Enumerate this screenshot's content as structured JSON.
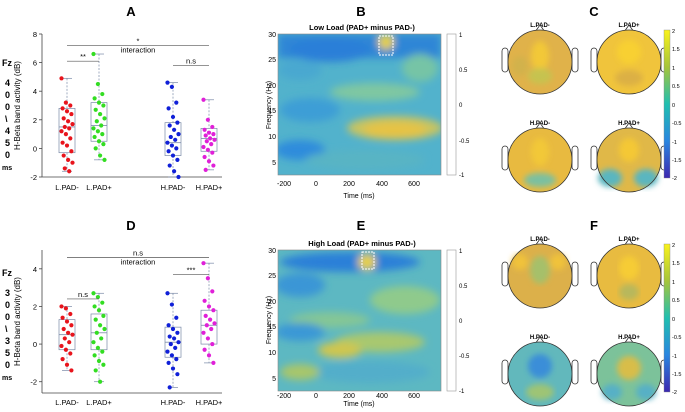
{
  "colors": {
    "lpad_minus": "#e8141c",
    "lpad_plus": "#33dd22",
    "hpad_minus": "#1020d8",
    "hpad_plus": "#e020d8",
    "box": "#7a8aa8",
    "bracket": "#555555"
  },
  "panel_labels": {
    "A": "A",
    "B": "B",
    "C": "C",
    "D": "D",
    "E": "E",
    "F": "F"
  },
  "side_labels": {
    "top": {
      "fz": "Fz",
      "chars": [
        "4",
        "0",
        "0",
        "\\",
        "4",
        "5",
        "0"
      ],
      "unit": "ms"
    },
    "bottom": {
      "fz": "Fz",
      "chars": [
        "3",
        "0",
        "0",
        "\\",
        "3",
        "5",
        "0"
      ],
      "unit": "ms"
    }
  },
  "chart_data": [
    {
      "id": "A",
      "type": "scatter",
      "ylabel": "H-Beta band activity (dB)",
      "ylim": [
        -2,
        8
      ],
      "yticks": [
        -2,
        0,
        2,
        4,
        6,
        8
      ],
      "categories": [
        "L.PAD-",
        "L.PAD+",
        "H.PAD-",
        "H.PAD+"
      ],
      "series": [
        {
          "name": "L.PAD-",
          "q1": -0.3,
          "median": 1.5,
          "q3": 2.8,
          "min": -1.6,
          "max": 4.9,
          "values": [
            4.9,
            3.2,
            3.0,
            2.8,
            2.6,
            2.4,
            2.1,
            1.9,
            1.7,
            1.5,
            1.4,
            1.2,
            1.0,
            0.7,
            0.4,
            0.2,
            -0.2,
            -0.5,
            -0.8,
            -1.0,
            -1.4,
            -1.6
          ]
        },
        {
          "name": "L.PAD+",
          "q1": 0.5,
          "median": 1.6,
          "q3": 3.2,
          "min": -0.8,
          "max": 6.6,
          "values": [
            6.6,
            4.5,
            3.8,
            3.5,
            3.2,
            3.0,
            2.7,
            2.4,
            2.1,
            1.9,
            1.6,
            1.4,
            1.2,
            1.0,
            0.8,
            0.5,
            0.3,
            0.0,
            -0.5,
            -0.8
          ]
        },
        {
          "name": "H.PAD-",
          "q1": -0.5,
          "median": 0.4,
          "q3": 1.8,
          "min": -2.0,
          "max": 4.6,
          "values": [
            4.6,
            4.3,
            3.2,
            2.8,
            2.2,
            1.8,
            1.6,
            1.3,
            1.0,
            0.8,
            0.6,
            0.4,
            0.2,
            0.0,
            -0.2,
            -0.5,
            -0.8,
            -1.2,
            -1.6,
            -2.0
          ]
        },
        {
          "name": "H.PAD+",
          "q1": -0.2,
          "median": 0.7,
          "q3": 1.4,
          "min": -1.5,
          "max": 3.4,
          "values": [
            3.4,
            2.0,
            1.5,
            1.3,
            1.1,
            1.0,
            0.9,
            0.7,
            0.6,
            0.5,
            0.3,
            0.1,
            -0.1,
            -0.3,
            -0.6,
            -0.9,
            -1.2,
            -1.5
          ]
        }
      ],
      "annotations": [
        {
          "label": "**",
          "between": [
            "L.PAD-",
            "L.PAD+"
          ],
          "y": 6.1
        },
        {
          "label": "n.s",
          "between": [
            "H.PAD-",
            "H.PAD+"
          ],
          "y": 5.8
        },
        {
          "label": "*",
          "sublabel": "interaction",
          "between": [
            "L.PAD-",
            "H.PAD+"
          ],
          "y": 7.2
        }
      ]
    },
    {
      "id": "D",
      "type": "scatter",
      "ylabel": "H-Beta band activity (dB)",
      "ylim": [
        -2.6,
        5
      ],
      "yticks": [
        -2,
        0,
        2,
        4
      ],
      "categories": [
        "L.PAD-",
        "L.PAD+",
        "H.PAD-",
        "H.PAD+"
      ],
      "series": [
        {
          "name": "L.PAD-",
          "q1": -0.3,
          "median": 0.5,
          "q3": 1.3,
          "min": -1.4,
          "max": 2.0,
          "values": [
            2.0,
            1.9,
            1.6,
            1.4,
            1.2,
            1.0,
            0.8,
            0.6,
            0.5,
            0.3,
            0.1,
            -0.1,
            -0.3,
            -0.5,
            -0.8,
            -1.1,
            -1.4
          ]
        },
        {
          "name": "L.PAD+",
          "q1": -0.3,
          "median": 0.6,
          "q3": 1.6,
          "min": -2.0,
          "max": 2.7,
          "values": [
            2.7,
            2.5,
            2.2,
            2.0,
            1.8,
            1.5,
            1.3,
            1.0,
            0.8,
            0.6,
            0.3,
            0.1,
            -0.2,
            -0.4,
            -0.6,
            -0.9,
            -1.1,
            -1.4,
            -2.0
          ]
        },
        {
          "name": "H.PAD-",
          "q1": -0.7,
          "median": 0.1,
          "q3": 0.9,
          "min": -2.3,
          "max": 2.7,
          "values": [
            2.7,
            2.1,
            1.4,
            1.0,
            0.8,
            0.6,
            0.4,
            0.3,
            0.1,
            0.0,
            -0.2,
            -0.4,
            -0.6,
            -0.8,
            -1.0,
            -1.3,
            -1.6,
            -2.3
          ]
        },
        {
          "name": "H.PAD+",
          "q1": 0.0,
          "median": 1.0,
          "q3": 1.8,
          "min": -1.0,
          "max": 4.3,
          "values": [
            4.3,
            3.5,
            2.8,
            2.3,
            2.0,
            1.8,
            1.5,
            1.3,
            1.1,
            1.0,
            0.8,
            0.6,
            0.3,
            0.0,
            -0.3,
            -0.6,
            -1.0
          ]
        }
      ],
      "annotations": [
        {
          "label": "n.s",
          "between": [
            "L.PAD-",
            "L.PAD+"
          ],
          "y": 2.4
        },
        {
          "label": "***",
          "between": [
            "H.PAD-",
            "H.PAD+"
          ],
          "y": 3.7
        },
        {
          "label": "n.s",
          "sublabel": "interaction",
          "between": [
            "L.PAD-",
            "H.PAD+"
          ],
          "y": 4.6
        }
      ]
    },
    {
      "id": "B",
      "type": "heatmap",
      "title": "Low Load (PAD+ minus PAD-)",
      "xlabel": "Time (ms)",
      "ylabel": "Frequency (Hz)",
      "xlim": [
        -200,
        800
      ],
      "ylim": [
        3,
        30
      ],
      "xticks": [
        -200,
        0,
        200,
        400,
        600
      ],
      "yticks": [
        5,
        10,
        15,
        20,
        25,
        30
      ],
      "colorbar": {
        "min": -1,
        "max": 1,
        "ticks": [
          -1,
          -0.5,
          0,
          0.5,
          1
        ]
      },
      "highlight": {
        "time": [
          350,
          450
        ],
        "freq": [
          26,
          30
        ]
      }
    },
    {
      "id": "E",
      "type": "heatmap",
      "title": "High Load (PAD+ minus PAD-)",
      "xlabel": "Time (ms)",
      "ylabel": "Frequency (Hz)",
      "xlim": [
        -200,
        800
      ],
      "ylim": [
        3,
        30
      ],
      "xticks": [
        -200,
        0,
        200,
        400,
        600
      ],
      "yticks": [
        5,
        10,
        15,
        20,
        25,
        30
      ],
      "colorbar": {
        "min": -1,
        "max": 1,
        "ticks": [
          -1,
          -0.5,
          0,
          0.5,
          1
        ]
      },
      "highlight": {
        "time": [
          300,
          350
        ],
        "freq": [
          26,
          30
        ]
      }
    },
    {
      "id": "C",
      "type": "heatmap",
      "subtype": "topography",
      "maps": [
        "L.PAD-",
        "L.PAD+",
        "H.PAD-",
        "H.PAD+"
      ],
      "colorbar": {
        "min": -2,
        "max": 2,
        "ticks": [
          2,
          1.5,
          1,
          0.5,
          0,
          -0.5,
          -1,
          -1.5,
          -2
        ]
      }
    },
    {
      "id": "F",
      "type": "heatmap",
      "subtype": "topography",
      "maps": [
        "L.PAD-",
        "L.PAD+",
        "H.PAD-",
        "H.PAD+"
      ],
      "colorbar": {
        "min": -2,
        "max": 2,
        "ticks": [
          2,
          1.5,
          1,
          0.5,
          0,
          -0.5,
          -1,
          -1.5,
          -2
        ]
      }
    }
  ]
}
